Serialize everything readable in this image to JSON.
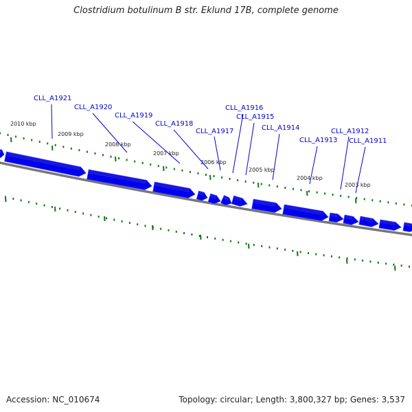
{
  "title": "Clostridium botulinum B str. Eklund 17B, complete genome",
  "footer": {
    "accession": "Accession: NC_010674",
    "summary": "Topology: circular; Length: 3,800,327 bp; Genes: 3,537"
  },
  "colors": {
    "gene": "#0000ee",
    "gene_edge": "#3333ff",
    "backbone": "#777777",
    "tick": "#117711",
    "label": "#0000cc"
  },
  "kbp_labels": [
    "2010 kbp",
    "2009 kbp",
    "2008 kbp",
    "2007 kbp",
    "2006 kbp",
    "2005 kbp",
    "2004 kbp",
    "2003 kbp"
  ],
  "gene_labels": [
    "CLL_A1921",
    "CLL_A1920",
    "CLL_A1919",
    "CLL_A1918",
    "CLL_A1917",
    "CLL_A1916",
    "CLL_A1915",
    "CLL_A1914",
    "CLL_A1913",
    "CLL_A1912",
    "CLL_A1911"
  ]
}
